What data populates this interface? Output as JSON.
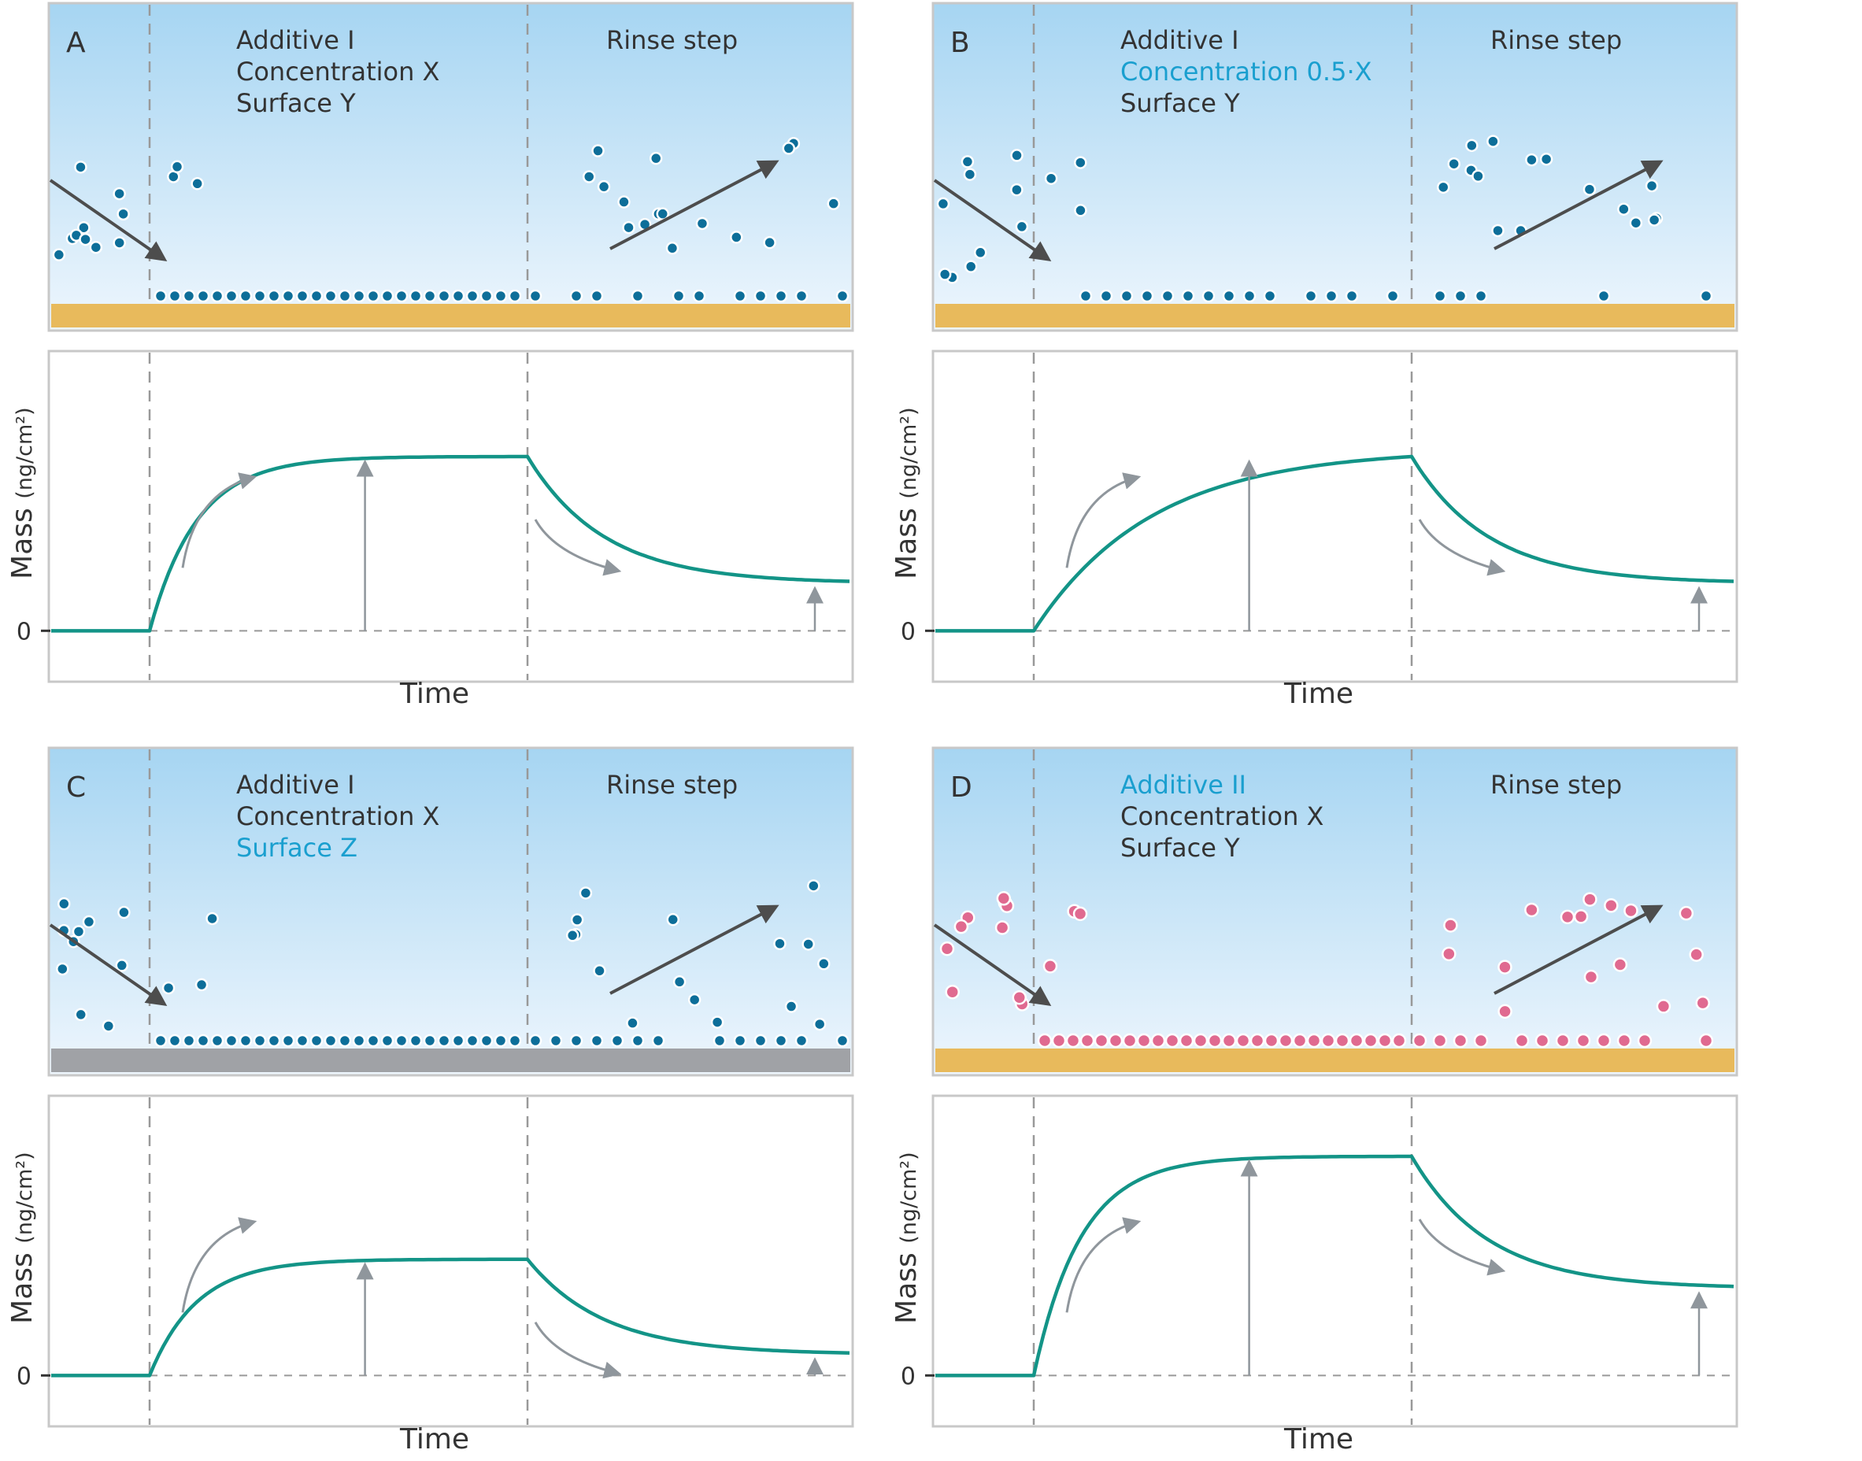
{
  "figure": {
    "palette": {
      "sky_top": "#a6d5f2",
      "sky_bottom": "#eef6fd",
      "gold_surface": "#e8ba5c",
      "grey_surface": "#a0a2a6",
      "curve": "#139487",
      "text": "#333333",
      "highlight": "#1a9fcf",
      "arrow_dark": "#4d4d4d",
      "arrow_grey": "#8f969c",
      "dashed": "#999999",
      "frame": "#c8c8c8",
      "molecule_blue": "#0d6e99",
      "molecule_pink": "#e06a90"
    },
    "common": {
      "y_axis_label_main": "Mass",
      "y_axis_label_unit": "(ng/cm²)",
      "zero_label": "0",
      "x_axis_label": "Time",
      "phase_label_rinse": "Rinse step"
    },
    "panels": [
      {
        "id": "A",
        "letter": "A",
        "lines": [
          {
            "text": "Additive I",
            "highlight": false
          },
          {
            "text": "Concentration X",
            "highlight": false
          },
          {
            "text": "Surface Y",
            "highlight": false
          }
        ],
        "surface": "gold",
        "molecule": "blue",
        "chart_data": {
          "type": "line",
          "plateau_rel": 0.66,
          "final_rel": 0.18,
          "rise_rate": 8.0
        }
      },
      {
        "id": "B",
        "letter": "B",
        "lines": [
          {
            "text": "Additive I",
            "highlight": false
          },
          {
            "text": "Concentration 0.5·X",
            "highlight": true
          },
          {
            "text": "Surface Y",
            "highlight": false
          }
        ],
        "surface": "gold",
        "molecule": "blue",
        "chart_data": {
          "type": "line",
          "plateau_rel": 0.66,
          "final_rel": 0.18,
          "rise_rate": 3.2
        }
      },
      {
        "id": "C",
        "letter": "C",
        "lines": [
          {
            "text": "Additive I",
            "highlight": false
          },
          {
            "text": "Concentration X",
            "highlight": false
          },
          {
            "text": "Surface Z",
            "highlight": true
          }
        ],
        "surface": "grey",
        "molecule": "blue",
        "chart_data": {
          "type": "line",
          "plateau_rel": 0.44,
          "final_rel": 0.08,
          "rise_rate": 8.0
        }
      },
      {
        "id": "D",
        "letter": "D",
        "lines": [
          {
            "text": "Additive II",
            "highlight": true
          },
          {
            "text": "Concentration X",
            "highlight": false
          },
          {
            "text": "Surface Y",
            "highlight": false
          }
        ],
        "surface": "gold",
        "molecule": "pink",
        "chart_data": {
          "type": "line",
          "plateau_rel": 0.83,
          "final_rel": 0.33,
          "rise_rate": 8.0
        }
      }
    ]
  }
}
